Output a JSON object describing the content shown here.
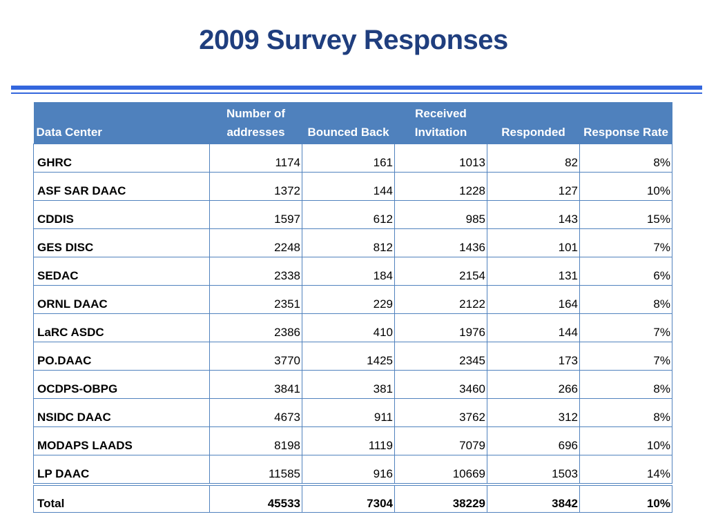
{
  "slide": {
    "title": "2009 Survey Responses"
  },
  "colors": {
    "title": "#1f3e7e",
    "rule": "#3366dd",
    "header_fill": "#4f81bd",
    "grid": "#4f81bd"
  },
  "table": {
    "headers": [
      "Data Center",
      "Number of addresses",
      "Bounced Back",
      "Received Invitation",
      "Responded",
      "Response Rate"
    ],
    "rows": [
      [
        "GHRC",
        "1174",
        "161",
        "1013",
        "82",
        "8%"
      ],
      [
        "ASF SAR DAAC",
        "1372",
        "144",
        "1228",
        "127",
        "10%"
      ],
      [
        "CDDIS",
        "1597",
        "612",
        "985",
        "143",
        "15%"
      ],
      [
        "GES DISC",
        "2248",
        "812",
        "1436",
        "101",
        "7%"
      ],
      [
        "SEDAC",
        "2338",
        "184",
        "2154",
        "131",
        "6%"
      ],
      [
        "ORNL DAAC",
        "2351",
        "229",
        "2122",
        "164",
        "8%"
      ],
      [
        "LaRC ASDC",
        "2386",
        "410",
        "1976",
        "144",
        "7%"
      ],
      [
        "PO.DAAC",
        "3770",
        "1425",
        "2345",
        "173",
        "7%"
      ],
      [
        "OCDPS-OBPG",
        "3841",
        "381",
        "3460",
        "266",
        "8%"
      ],
      [
        "NSIDC DAAC",
        "4673",
        "911",
        "3762",
        "312",
        "8%"
      ],
      [
        "MODAPS LAADS",
        "8198",
        "1119",
        "7079",
        "696",
        "10%"
      ],
      [
        "LP DAAC",
        "11585",
        "916",
        "10669",
        "1503",
        "14%"
      ]
    ],
    "total": [
      "Total",
      "45533",
      "7304",
      "38229",
      "3842",
      "10%"
    ]
  }
}
